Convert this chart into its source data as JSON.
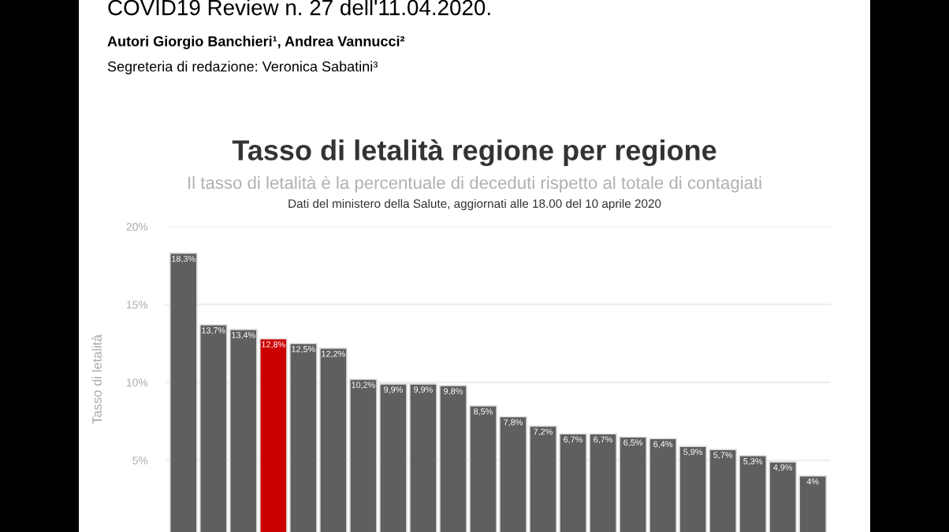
{
  "chart_data": {
    "type": "bar",
    "title": "Tasso di letalità regione per regione",
    "subtitle": "Il tasso di letalità è la percentuale di deceduti rispetto al totale di contagiati",
    "annotations": [
      "COVID19 Review n. 27 dell'11.04.2020.",
      "Autori Giorgio Banchieri¹, Andrea Vannucci²",
      "Segreteria di redazione: Veronica Sabatini³",
      "Dati del ministero della Salute, aggiornati alle 18.00 del 10 aprile 2020"
    ],
    "ylabel": "Tasso di letalità",
    "categories": [
      null,
      null,
      null,
      null,
      null,
      null,
      null,
      null,
      null,
      null,
      null,
      null,
      null,
      null,
      null,
      null,
      null,
      null,
      null,
      null,
      null,
      null
    ],
    "values": [
      18.3,
      13.7,
      13.4,
      12.8,
      12.5,
      12.2,
      10.2,
      9.9,
      9.9,
      9.8,
      8.5,
      7.8,
      7.2,
      6.7,
      6.7,
      6.5,
      6.4,
      5.9,
      5.7,
      5.3,
      4.9,
      4
    ],
    "value_labels": [
      "18,3%",
      "13,7%",
      "13,4%",
      "12,8%",
      "12,5%",
      "12,2%",
      "10,2%",
      "9,9%",
      "9,9%",
      "9,8%",
      "8,5%",
      "7,8%",
      "7,2%",
      "6,7%",
      "6,7%",
      "6,5%",
      "6,4%",
      "5,9%",
      "5,7%",
      "5,3%",
      "4,9%",
      "4%"
    ],
    "colors": [
      "#5f5f5f",
      "#5f5f5f",
      "#5f5f5f",
      "#cc0000",
      "#5f5f5f",
      "#5f5f5f",
      "#5f5f5f",
      "#5f5f5f",
      "#5f5f5f",
      "#5f5f5f",
      "#5f5f5f",
      "#5f5f5f",
      "#5f5f5f",
      "#5f5f5f",
      "#5f5f5f",
      "#5f5f5f",
      "#5f5f5f",
      "#5f5f5f",
      "#5f5f5f",
      "#5f5f5f",
      "#5f5f5f",
      "#5f5f5f"
    ],
    "ylim": [
      0.4,
      20
    ],
    "yticks": [
      {
        "value": 5,
        "label": "5%"
      },
      {
        "value": 10,
        "label": "10%"
      },
      {
        "value": 15,
        "label": "15%"
      },
      {
        "value": 20,
        "label": "20%"
      }
    ],
    "grid": "y"
  }
}
